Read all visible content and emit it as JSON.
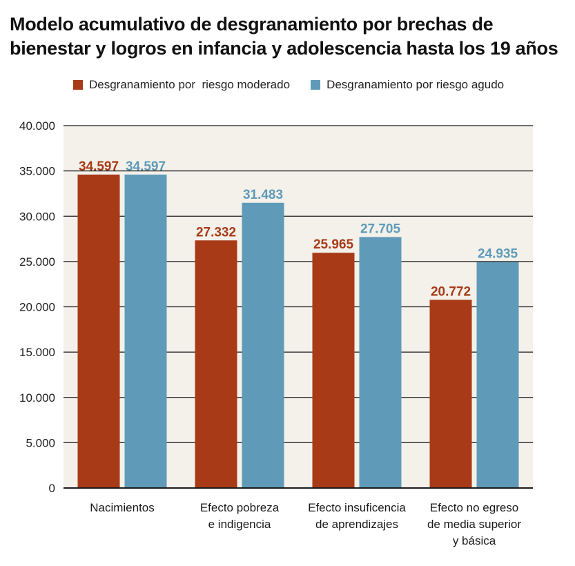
{
  "chart_data": {
    "type": "bar",
    "title_line1": "Modelo acumulativo de desgranamiento por brechas de",
    "title_line2": "bienestar y logros en infancia y adolescencia hasta los 19 años",
    "categories": [
      [
        "Nacimientos"
      ],
      [
        "Efecto pobreza",
        "e indigencia"
      ],
      [
        "Efecto insuficencia",
        "de aprendizajes"
      ],
      [
        "Efecto no egreso",
        "de media superior",
        "y básica"
      ]
    ],
    "series": [
      {
        "name": "Desgranamiento por  riesgo moderado",
        "color": "#a83a17",
        "values": [
          34597,
          27332,
          25965,
          20772
        ],
        "labels": [
          "34.597",
          "27.332",
          "25.965",
          "20.772"
        ]
      },
      {
        "name": "Desgranamiento por riesgo agudo",
        "color": "#5f9bb8",
        "values": [
          34597,
          31483,
          27705,
          24935
        ],
        "labels": [
          "34.597",
          "31.483",
          "27.705",
          "24.935"
        ]
      }
    ],
    "ylim": [
      0,
      40000
    ],
    "yticks": [
      0,
      5000,
      10000,
      15000,
      20000,
      25000,
      30000,
      35000,
      40000
    ],
    "ytick_labels": [
      "0",
      "5.000",
      "10.000",
      "15.000",
      "20.000",
      "25.000",
      "30.000",
      "35.000",
      "40.000"
    ],
    "grid": true,
    "legend_position": "top",
    "plot_background": "#f3f1ea"
  }
}
